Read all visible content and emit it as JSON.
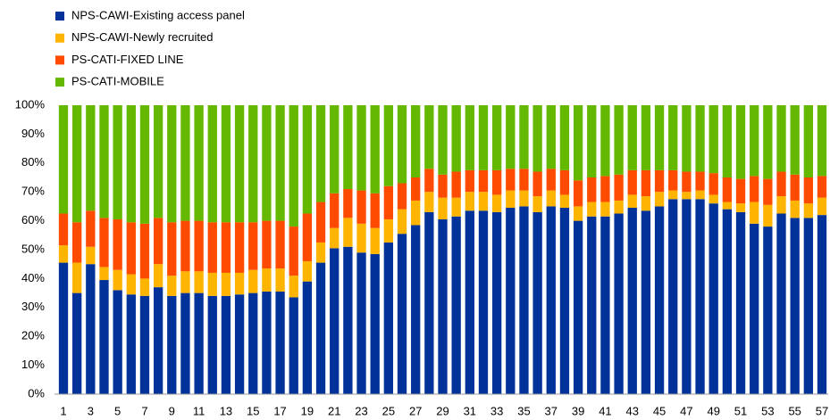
{
  "chart_data": {
    "type": "stacked_bar_100",
    "categories": [
      1,
      null,
      3,
      null,
      5,
      null,
      7,
      null,
      9,
      null,
      11,
      null,
      13,
      null,
      15,
      null,
      17,
      null,
      19,
      null,
      21,
      null,
      23,
      null,
      25,
      null,
      27,
      null,
      29,
      null,
      31,
      null,
      33,
      null,
      35,
      null,
      37,
      null,
      39,
      null,
      41,
      null,
      43,
      null,
      45,
      null,
      47,
      null,
      49,
      null,
      51,
      null,
      53,
      null,
      55,
      null,
      57
    ],
    "series": [
      {
        "name": "NPS-CAWI-Existing access panel",
        "color": "#003299",
        "values": [
          45.5,
          35,
          45,
          39.5,
          36,
          34.5,
          34,
          37,
          34,
          35,
          35,
          34,
          34,
          34.5,
          35,
          35.5,
          35.5,
          33.5,
          39,
          45.5,
          50.5,
          51,
          49,
          48.5,
          52.5,
          55.5,
          58.5,
          63,
          60.5,
          61.5,
          63.5,
          63.5,
          63,
          64.5,
          65,
          63,
          65,
          64.5,
          60,
          61.5,
          61.5,
          62.5,
          64.5,
          63.5,
          65,
          67.5,
          67.5,
          67.5,
          66,
          64,
          63,
          59,
          58,
          62.5,
          61,
          61,
          62
        ]
      },
      {
        "name": "NPS-CAWI-Newly recruited",
        "color": "#ffb400",
        "values": [
          6,
          10.5,
          6,
          4.5,
          7,
          7,
          6,
          8,
          7,
          7.5,
          7.5,
          8,
          8,
          7.5,
          8,
          8,
          8,
          7.5,
          7,
          7,
          7,
          10,
          10,
          9,
          8,
          8.5,
          8.5,
          7,
          7.5,
          6.5,
          6.5,
          6.5,
          6,
          6,
          5.5,
          5.5,
          5.5,
          4.5,
          5,
          5,
          5,
          4.5,
          4.5,
          5,
          5,
          3,
          2.5,
          3,
          3,
          2.5,
          3,
          7.5,
          7.5,
          6,
          6,
          5,
          6
        ]
      },
      {
        "name": "PS-CATI-FIXED LINE",
        "color": "#ff4b00",
        "values": [
          11,
          14,
          12.5,
          17,
          17.5,
          18,
          19,
          16,
          18.5,
          17.5,
          17.5,
          17.5,
          17.5,
          17.5,
          16.5,
          16.5,
          16.5,
          17,
          16.5,
          14,
          12,
          10,
          11.5,
          12,
          11.5,
          9,
          8,
          8,
          8,
          9,
          7.5,
          7.5,
          8.5,
          7.5,
          7.5,
          8.5,
          7.5,
          8.5,
          9,
          8.5,
          9,
          9,
          8.5,
          9,
          7.5,
          7,
          7,
          6.5,
          7.5,
          8.5,
          8.5,
          9,
          9,
          8.5,
          9,
          9,
          7.5
        ]
      },
      {
        "name": "PS-CATI-MOBILE",
        "color": "#65b800",
        "values": [
          37.5,
          40.5,
          36.5,
          39,
          39.5,
          40.5,
          41,
          39,
          40.5,
          40,
          40,
          40.5,
          40.5,
          40.5,
          40.5,
          40,
          40,
          42,
          37.5,
          33.5,
          30.5,
          29,
          29.5,
          30.5,
          28,
          27,
          25,
          22,
          24,
          23,
          22.5,
          22.5,
          22.5,
          22,
          22,
          23,
          22,
          22.5,
          26,
          25,
          24.5,
          24,
          22.5,
          22.5,
          22.5,
          22.5,
          23,
          23,
          23.5,
          25,
          25.5,
          24.5,
          25.5,
          23,
          24,
          25,
          24.5
        ]
      }
    ],
    "ylim": [
      0,
      100
    ],
    "yticks": [
      {
        "value": 0,
        "label": "0%"
      },
      {
        "value": 10,
        "label": "10%"
      },
      {
        "value": 20,
        "label": "20%"
      },
      {
        "value": 30,
        "label": "30%"
      },
      {
        "value": 40,
        "label": "40%"
      },
      {
        "value": 50,
        "label": "50%"
      },
      {
        "value": 60,
        "label": "60%"
      },
      {
        "value": 70,
        "label": "70%"
      },
      {
        "value": 80,
        "label": "80%"
      },
      {
        "value": 90,
        "label": "90%"
      },
      {
        "value": 100,
        "label": "100%"
      }
    ],
    "grid": false,
    "legend": "top-left"
  }
}
